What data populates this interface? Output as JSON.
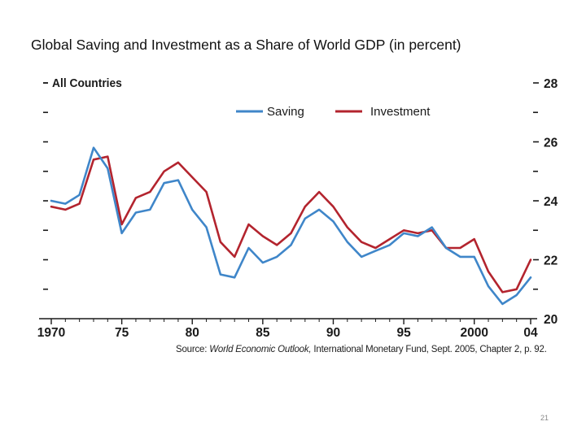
{
  "slide": {
    "title": "Global Saving and Investment as a Share of World GDP (in percent)",
    "page_number": "21"
  },
  "source": {
    "prefix": "Source:",
    "publication": "World Economic Outlook,",
    "rest": "International Monetary Fund, Sept. 2005, Chapter 2, p. 92."
  },
  "chart_data": {
    "type": "line",
    "title": "All Countries",
    "xlabel": "",
    "ylabel": "",
    "xlim": [
      1970,
      2004
    ],
    "ylim": [
      20,
      28
    ],
    "y_ticks": [
      20,
      22,
      24,
      26,
      28
    ],
    "x_tick_values": [
      1970,
      1975,
      1980,
      1985,
      1990,
      1995,
      2000,
      2004
    ],
    "x_tick_labels": [
      "1970",
      "75",
      "80",
      "85",
      "90",
      "95",
      "2000",
      "04"
    ],
    "legend": "top-center",
    "x": [
      1970,
      1971,
      1972,
      1973,
      1974,
      1975,
      1976,
      1977,
      1978,
      1979,
      1980,
      1981,
      1982,
      1983,
      1984,
      1985,
      1986,
      1987,
      1988,
      1989,
      1990,
      1991,
      1992,
      1993,
      1994,
      1995,
      1996,
      1997,
      1998,
      1999,
      2000,
      2001,
      2002,
      2003,
      2004
    ],
    "series": [
      {
        "name": "Saving",
        "color": "#3f86c9",
        "values": [
          24.0,
          23.9,
          24.2,
          25.8,
          25.1,
          22.9,
          23.6,
          23.7,
          24.6,
          24.7,
          23.7,
          23.1,
          21.5,
          21.4,
          22.4,
          21.9,
          22.1,
          22.5,
          23.4,
          23.7,
          23.3,
          22.6,
          22.1,
          22.3,
          22.5,
          22.9,
          22.8,
          23.1,
          22.4,
          22.1,
          22.1,
          21.1,
          20.5,
          20.8,
          21.4
        ]
      },
      {
        "name": "Investment",
        "color": "#b3242e",
        "values": [
          23.8,
          23.7,
          23.9,
          25.4,
          25.5,
          23.2,
          24.1,
          24.3,
          25.0,
          25.3,
          24.8,
          24.3,
          22.6,
          22.1,
          23.2,
          22.8,
          22.5,
          22.9,
          23.8,
          24.3,
          23.8,
          23.1,
          22.6,
          22.4,
          22.7,
          23.0,
          22.9,
          23.0,
          22.4,
          22.4,
          22.7,
          21.6,
          20.9,
          21.0,
          22.0
        ]
      }
    ]
  }
}
